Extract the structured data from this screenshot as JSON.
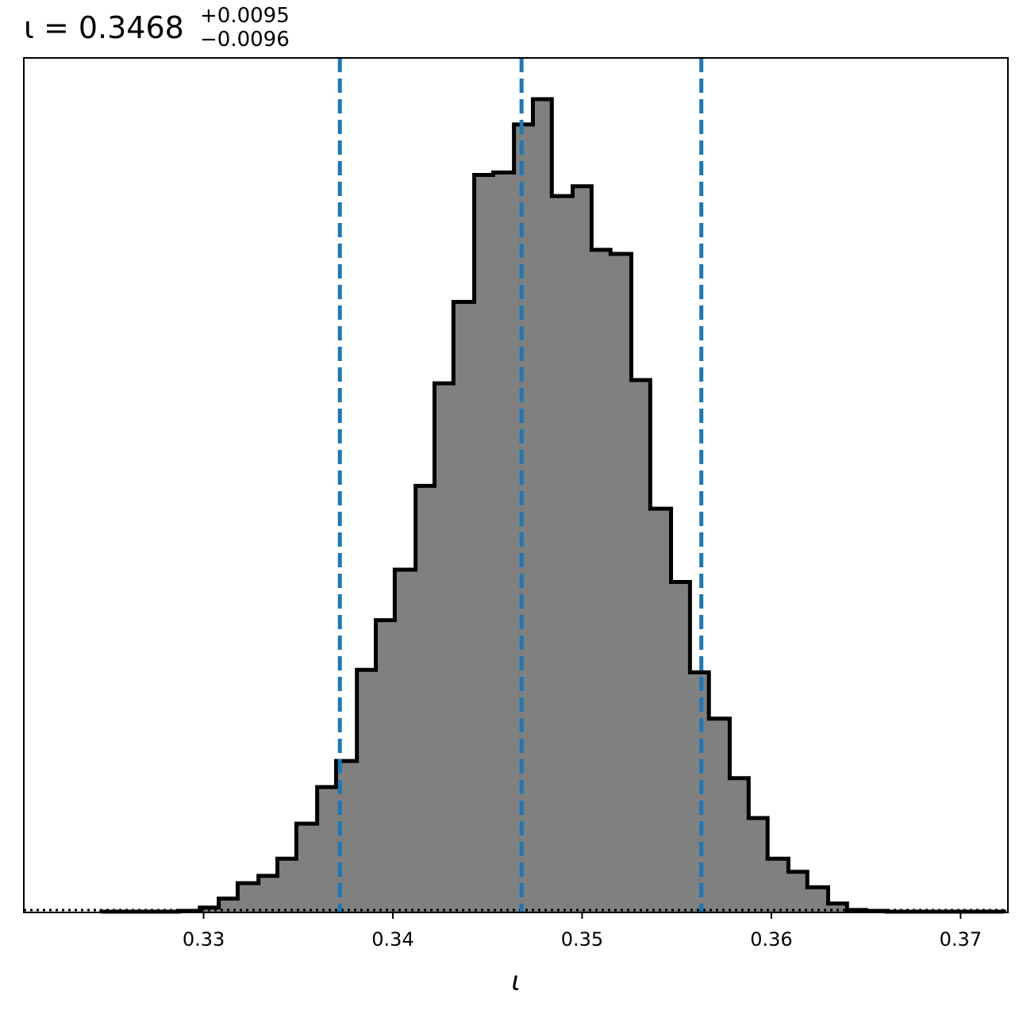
{
  "chart_data": {
    "type": "histogram",
    "title": {
      "symbol": "ι",
      "equals": " = ",
      "value": "0.3468",
      "plus": "+0.0095",
      "minus": "−0.0096"
    },
    "xlabel": "ι",
    "ylabel": "",
    "xlim": [
      0.3205,
      0.3725
    ],
    "ylim": [
      0,
      1.0
    ],
    "xticks": [
      0.33,
      0.34,
      0.35,
      0.36,
      0.37
    ],
    "xtick_labels": [
      "0.33",
      "0.34",
      "0.35",
      "0.36",
      "0.37"
    ],
    "yticks_visible": false,
    "grid": false,
    "histogram": {
      "bin_edges": [
        0.3246,
        0.3256,
        0.3266,
        0.3277,
        0.3287,
        0.3298,
        0.3308,
        0.3318,
        0.3329,
        0.3339,
        0.3349,
        0.336,
        0.337,
        0.3381,
        0.3391,
        0.3401,
        0.3412,
        0.3422,
        0.3432,
        0.3443,
        0.3453,
        0.3464,
        0.3474,
        0.3484,
        0.3495,
        0.3505,
        0.3515,
        0.3526,
        0.3536,
        0.3547,
        0.3557,
        0.3567,
        0.3578,
        0.3588,
        0.3598,
        0.3609,
        0.3619,
        0.363,
        0.364,
        0.365,
        0.3661,
        0.3671,
        0.3681,
        0.3692,
        0.3702,
        0.3713,
        0.3723
      ],
      "counts": [
        0.001,
        0.001,
        0.001,
        0.001,
        0.002,
        0.006,
        0.017,
        0.036,
        0.045,
        0.066,
        0.109,
        0.154,
        0.186,
        0.298,
        0.359,
        0.421,
        0.524,
        0.65,
        0.75,
        0.906,
        0.909,
        0.968,
        0.999,
        0.88,
        0.892,
        0.814,
        0.809,
        0.654,
        0.496,
        0.406,
        0.295,
        0.238,
        0.165,
        0.116,
        0.066,
        0.05,
        0.031,
        0.011,
        0.003,
        0.002,
        0.001,
        0.001,
        0.001,
        0.001,
        0.001,
        0.001
      ],
      "fill_color": "#808080",
      "edge_color": "#000000"
    },
    "vlines": [
      {
        "name": "lower",
        "x": 0.3372,
        "color": "#1f77b4",
        "style": "dashed"
      },
      {
        "name": "median",
        "x": 0.3468,
        "color": "#1f77b4",
        "style": "dashed"
      },
      {
        "name": "upper",
        "x": 0.3563,
        "color": "#1f77b4",
        "style": "dashed"
      }
    ],
    "baseline": {
      "color": "#000000",
      "style": "dotted"
    }
  }
}
